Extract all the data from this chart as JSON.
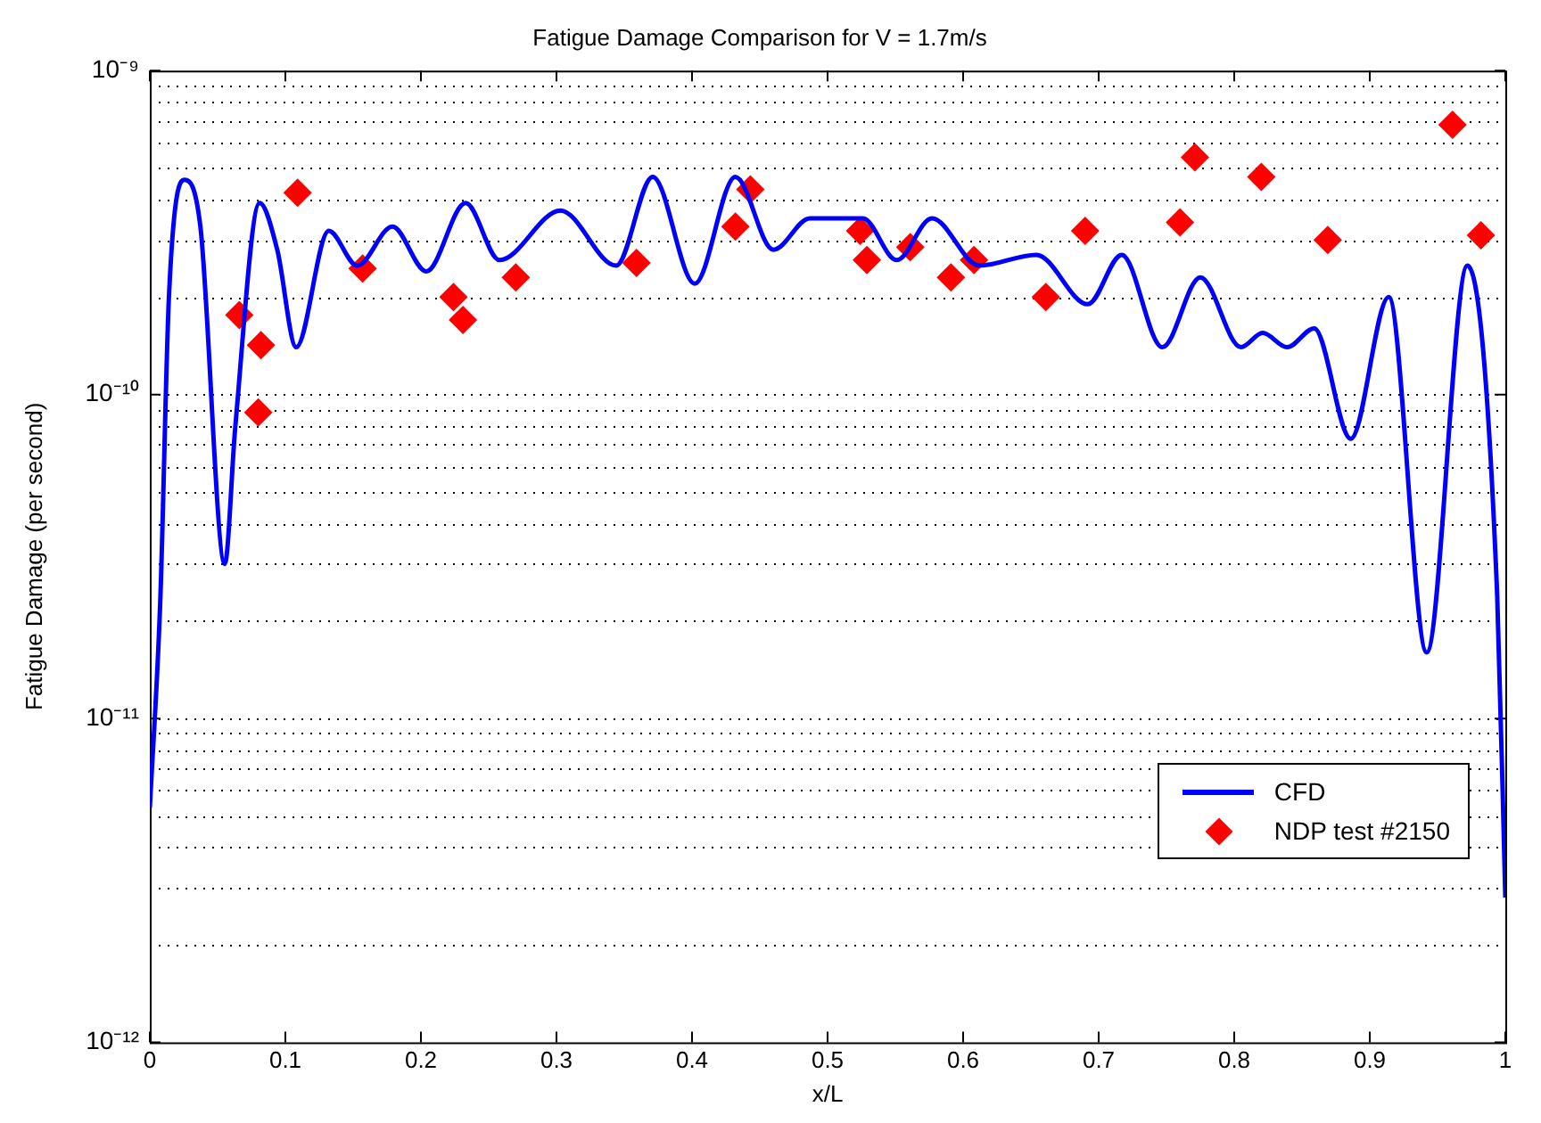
{
  "chart_data": {
    "type": "line",
    "title": "Fatigue Damage Comparison for V = 1.7m/s",
    "xlabel": "x/L",
    "ylabel": "Fatigue Damage (per second)",
    "xlim": [
      0,
      1
    ],
    "xticks": [
      0,
      0.1,
      0.2,
      0.3,
      0.4,
      0.5,
      0.6,
      0.7,
      0.8,
      0.9,
      1
    ],
    "ylim": [
      1e-12,
      1e-09
    ],
    "yticks": [
      {
        "value": 1e-12,
        "label": "10⁻¹²"
      },
      {
        "value": 1e-11,
        "label": "10⁻¹¹"
      },
      {
        "value": 1e-10,
        "label": "10⁻¹⁰"
      },
      {
        "value": 1e-09,
        "label": "10⁻⁹"
      }
    ],
    "log": "y",
    "grid": "y",
    "legend": "bottom right",
    "series": [
      {
        "name": "CFD",
        "type": "line",
        "color": "#0000ff",
        "marker": "none",
        "line_style": "solid",
        "x": [
          0,
          0.0077,
          0.0141,
          0.0257,
          0.0373,
          0.0553,
          0.063,
          0.081,
          0.094,
          0.108,
          0.132,
          0.153,
          0.179,
          0.204,
          0.233,
          0.258,
          0.303,
          0.344,
          0.371,
          0.402,
          0.432,
          0.46,
          0.487,
          0.526,
          0.551,
          0.577,
          0.612,
          0.654,
          0.692,
          0.717,
          0.747,
          0.775,
          0.805,
          0.821,
          0.839,
          0.859,
          0.886,
          0.914,
          0.942,
          0.972,
          0.994,
          1.0
        ],
        "values": [
          5.3e-12,
          2.3e-11,
          2e-10,
          4.6e-10,
          3.3e-10,
          3e-11,
          7.9e-11,
          3.9e-10,
          2.8e-10,
          1.4e-10,
          3.2e-10,
          2.5e-10,
          3.3e-10,
          2.4e-10,
          3.9e-10,
          2.6e-10,
          3.7e-10,
          2.5e-10,
          4.7e-10,
          2.2e-10,
          4.7e-10,
          2.8e-10,
          3.5e-10,
          3.5e-10,
          2.6e-10,
          3.5e-10,
          2.5e-10,
          2.7e-10,
          1.9e-10,
          2.7e-10,
          1.4e-10,
          2.3e-10,
          1.4e-10,
          1.55e-10,
          1.4e-10,
          1.6e-10,
          7.3e-11,
          2e-10,
          1.6e-11,
          2.5e-10,
          2.4e-11,
          2.8e-12
        ]
      },
      {
        "name": "NDP test #2150",
        "type": "scatter",
        "color": "#ff0000",
        "marker": "diamond",
        "x": [
          0.066,
          0.082,
          0.08,
          0.109,
          0.157,
          0.224,
          0.231,
          0.27,
          0.359,
          0.432,
          0.443,
          0.524,
          0.529,
          0.561,
          0.591,
          0.608,
          0.661,
          0.69,
          0.76,
          0.771,
          0.82,
          0.869,
          0.961,
          0.982
        ],
        "values": [
          1.76e-10,
          1.42e-10,
          8.8e-11,
          4.2e-10,
          2.45e-10,
          2e-10,
          1.7e-10,
          2.3e-10,
          2.55e-10,
          3.3e-10,
          4.3e-10,
          3.2e-10,
          2.6e-10,
          2.85e-10,
          2.3e-10,
          2.6e-10,
          2e-10,
          3.2e-10,
          3.4e-10,
          5.4e-10,
          4.7e-10,
          3e-10,
          6.8e-10,
          3.1e-10
        ]
      }
    ]
  }
}
